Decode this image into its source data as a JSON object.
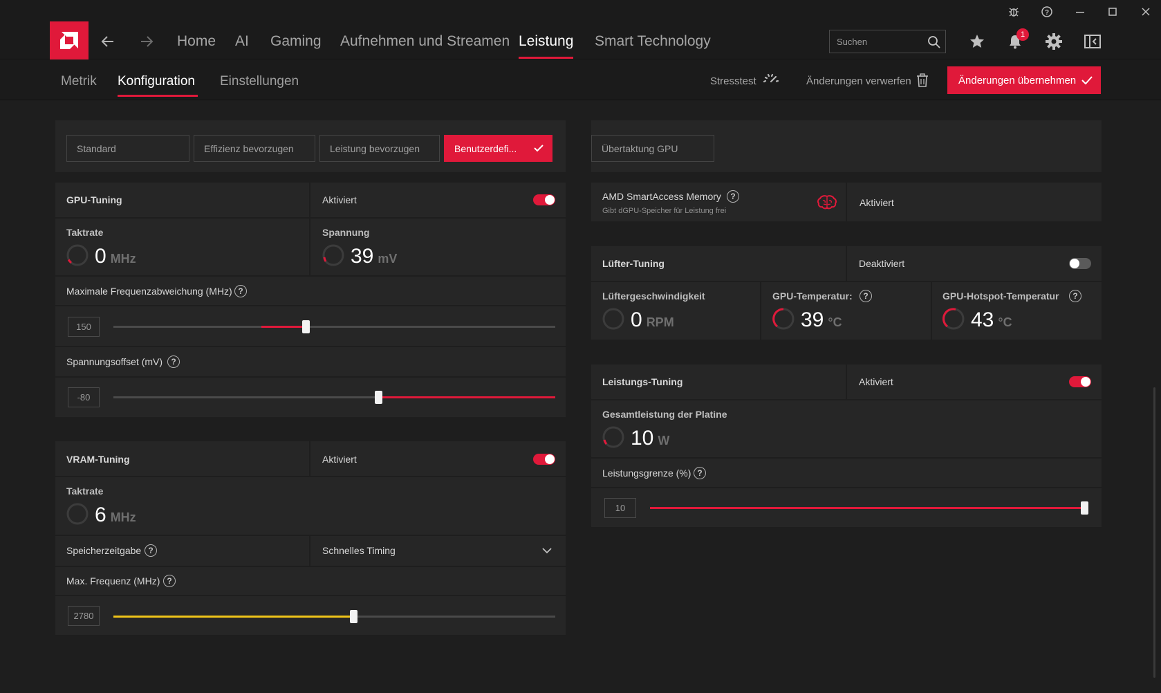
{
  "nav": {
    "items": [
      "Home",
      "AI",
      "Gaming",
      "Aufnehmen und Streamen",
      "Leistung",
      "Smart Technology"
    ],
    "active": "Leistung",
    "search_placeholder": "Suchen",
    "notification_count": "1"
  },
  "subnav": {
    "tabs": [
      "Metrik",
      "Konfiguration",
      "Einstellungen"
    ],
    "active": "Konfiguration",
    "stresstest": "Stresstest",
    "discard": "Änderungen verwerfen",
    "apply": "Änderungen übernehmen"
  },
  "presets": [
    "Standard",
    "Effizienz bevorzugen",
    "Leistung bevorzugen",
    "Benutzerdefi..."
  ],
  "presets_active": "Benutzerdefi...",
  "right_preset": "Übertaktung GPU",
  "gpu_tuning": {
    "title": "GPU-Tuning",
    "status": "Aktiviert",
    "enabled": true,
    "clock": {
      "label": "Taktrate",
      "value": "0",
      "unit": "MHz"
    },
    "voltage": {
      "label": "Spannung",
      "value": "39",
      "unit": "mV"
    },
    "max_freq": {
      "label": "Maximale Frequenzabweichung (MHz)",
      "value": "150",
      "fill_from": 0.335,
      "fill_to": 0.435,
      "thumb": 0.435
    },
    "voltage_offset": {
      "label": "Spannungsoffset (mV)",
      "value": "-80",
      "fill_from": 0.6,
      "fill_to": 1.0,
      "thumb": 0.6
    }
  },
  "vram_tuning": {
    "title": "VRAM-Tuning",
    "status": "Aktiviert",
    "enabled": true,
    "clock": {
      "label": "Taktrate",
      "value": "6",
      "unit": "MHz"
    },
    "timing": {
      "label": "Speicherzeitgabe",
      "value": "Schnelles Timing"
    },
    "max_freq": {
      "label": "Max. Frequenz (MHz)",
      "value": "2780",
      "fill_from": 0.0,
      "fill_to": 0.543,
      "thumb": 0.543
    }
  },
  "sam": {
    "title": "AMD SmartAccess Memory",
    "subtitle": "Gibt dGPU-Speicher für Leistung frei",
    "status": "Aktiviert"
  },
  "fan_tuning": {
    "title": "Lüfter-Tuning",
    "status": "Deaktiviert",
    "enabled": false,
    "fan_speed": {
      "label": "Lüftergeschwindigkeit",
      "value": "0",
      "unit": "RPM"
    },
    "gpu_temp": {
      "label": "GPU-Temperatur:",
      "value": "39",
      "unit": "°C"
    },
    "hotspot_temp": {
      "label": "GPU-Hotspot-Temperatur",
      "value": "43",
      "unit": "°C"
    }
  },
  "power_tuning": {
    "title": "Leistungs-Tuning",
    "status": "Aktiviert",
    "enabled": true,
    "board_power": {
      "label": "Gesamtleistung der Platine",
      "value": "10",
      "unit": "W"
    },
    "power_limit": {
      "label": "Leistungsgrenze (%)",
      "value": "10",
      "fill_from": 0.0,
      "fill_to": 1.0,
      "thumb": 1.0
    }
  },
  "colors": {
    "accent": "#e0193a",
    "yellow": "#f0c419",
    "bg": "#1e1e1e",
    "panel": "#262626"
  }
}
